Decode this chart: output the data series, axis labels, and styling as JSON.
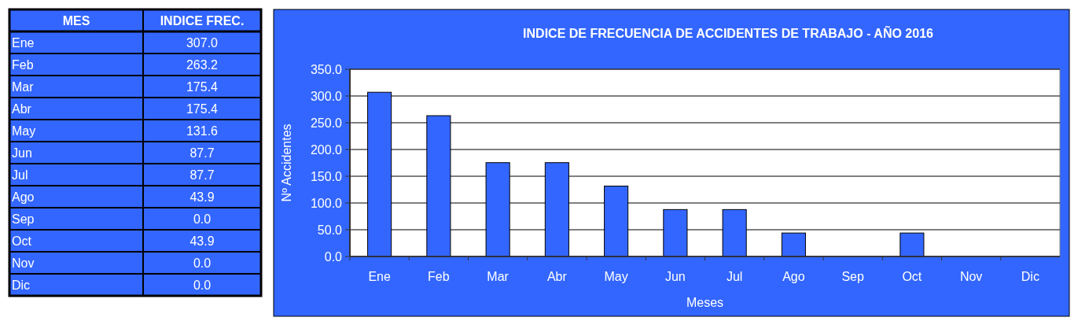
{
  "chart_data": [
    {
      "type": "other",
      "annotations": [
        "MES",
        "INDICE FREC.",
        "Ene",
        "307.0",
        "Feb",
        "263.2",
        "Mar",
        "175.4",
        "Abr",
        "175.4",
        "May",
        "131.6",
        "Jun",
        "87.7",
        "Jul",
        "87.7",
        "Ago",
        "43.9",
        "Sep",
        "0.0",
        "Oct",
        "43.9",
        "Nov",
        "0.0",
        "Dic",
        "0.0"
      ]
    },
    {
      "type": "bar",
      "title": "INDICE DE FRECUENCIA  DE ACCIDENTES  DE TRABAJO - AÑO 2016",
      "xlabel": "Meses",
      "ylabel": "Nº Accidentes",
      "categories": [
        "Ene",
        "Feb",
        "Mar",
        "Abr",
        "May",
        "Jun",
        "Jul",
        "Ago",
        "Sep",
        "Oct",
        "Nov",
        "Dic"
      ],
      "values": [
        307.0,
        263.2,
        175.4,
        175.4,
        131.6,
        87.7,
        87.7,
        43.9,
        0.0,
        43.9,
        0.0,
        0.0
      ],
      "color": "#3366ff",
      "ylim": [
        0,
        350
      ],
      "yticks": [
        {
          "value": 0,
          "label": "0.0"
        },
        {
          "value": 50,
          "label": "50.0"
        },
        {
          "value": 100,
          "label": "100.0"
        },
        {
          "value": 150,
          "label": "150.0"
        },
        {
          "value": 200,
          "label": "200.0"
        },
        {
          "value": 250,
          "label": "250.0"
        },
        {
          "value": 300,
          "label": "300.0"
        },
        {
          "value": 350,
          "label": "350.0"
        }
      ],
      "grid": "y"
    }
  ]
}
